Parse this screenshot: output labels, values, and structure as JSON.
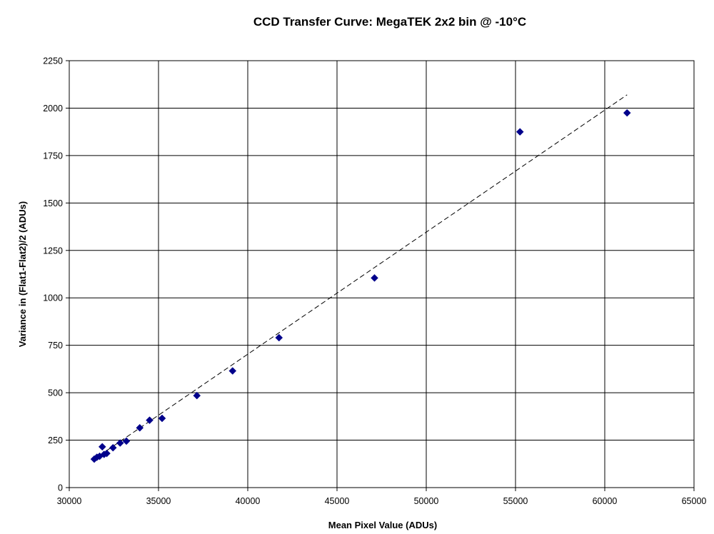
{
  "chart_data": {
    "type": "scatter",
    "title": "CCD Transfer Curve: MegaTEK 2x2 bin @ -10°C",
    "xlabel": "Mean Pixel Value (ADUs)",
    "ylabel": "Variance in (Flat1-Flat2)/2 (ADUs)",
    "xlim": [
      30000,
      65000
    ],
    "ylim": [
      0,
      2250
    ],
    "x_ticks": [
      30000,
      35000,
      40000,
      45000,
      50000,
      55000,
      60000,
      65000
    ],
    "y_ticks": [
      0,
      250,
      500,
      750,
      1000,
      1250,
      1500,
      1750,
      2000,
      2250
    ],
    "grid": true,
    "legend": "none",
    "marker": "diamond",
    "marker_color": "#00008B",
    "series": [
      {
        "points": [
          {
            "x": 31400,
            "y": 150
          },
          {
            "x": 31550,
            "y": 160
          },
          {
            "x": 31700,
            "y": 165
          },
          {
            "x": 31850,
            "y": 215
          },
          {
            "x": 31950,
            "y": 175
          },
          {
            "x": 32100,
            "y": 180
          },
          {
            "x": 32450,
            "y": 210
          },
          {
            "x": 32850,
            "y": 235
          },
          {
            "x": 33200,
            "y": 245
          },
          {
            "x": 33950,
            "y": 315
          },
          {
            "x": 34500,
            "y": 355
          },
          {
            "x": 35200,
            "y": 365
          },
          {
            "x": 37150,
            "y": 485
          },
          {
            "x": 39150,
            "y": 615
          },
          {
            "x": 41750,
            "y": 790
          },
          {
            "x": 47100,
            "y": 1105
          },
          {
            "x": 55250,
            "y": 1875
          },
          {
            "x": 61250,
            "y": 1975
          }
        ]
      }
    ],
    "trendline": {
      "style": "dashed",
      "color": "#000000",
      "from": {
        "x": 31400,
        "y": 150
      },
      "to": {
        "x": 61250,
        "y": 2070
      }
    }
  }
}
